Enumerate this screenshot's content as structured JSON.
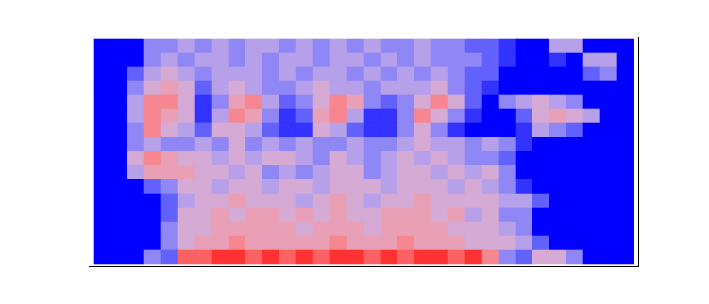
{
  "chart_data": {
    "type": "heatmap",
    "tick_labels": false,
    "zlim": [
      0,
      1
    ],
    "cells": [
      [
        0,
        0,
        0,
        0.3,
        0.3,
        0.4,
        0.3,
        0.4,
        0.3,
        0.4,
        0.4,
        0.3,
        0.4,
        0.3,
        0.4,
        0.3,
        0.4,
        0.3,
        0.3,
        0.4,
        0.3,
        0.3,
        0.2,
        0.2,
        0.1,
        0,
        0,
        0.4,
        0.4,
        0,
        0,
        0
      ],
      [
        0,
        0,
        0,
        0.3,
        0.4,
        0.3,
        0.4,
        0.4,
        0.3,
        0.4,
        0.3,
        0.4,
        0.4,
        0.3,
        0.4,
        0.4,
        0.3,
        0.4,
        0.3,
        0.4,
        0.3,
        0.3,
        0.3,
        0.2,
        0.1,
        0,
        0,
        0.1,
        0,
        0.4,
        0.4,
        0
      ],
      [
        0,
        0,
        0.2,
        0.4,
        0.5,
        0.4,
        0.3,
        0.4,
        0.4,
        0.4,
        0.3,
        0.4,
        0.3,
        0.4,
        0.4,
        0.3,
        0.4,
        0.3,
        0.4,
        0.3,
        0.4,
        0.3,
        0.2,
        0.2,
        0,
        0,
        0,
        0,
        0,
        0.2,
        0.3,
        0
      ],
      [
        0,
        0,
        0.3,
        0.5,
        0.6,
        0.5,
        0.2,
        0.4,
        0.5,
        0.4,
        0.3,
        0.3,
        0.4,
        0.5,
        0.4,
        0.4,
        0.3,
        0.4,
        0.4,
        0.4,
        0.5,
        0.3,
        0.2,
        0.1,
        0,
        0,
        0,
        0,
        0,
        0,
        0,
        0
      ],
      [
        0,
        0,
        0.4,
        0.7,
        0.7,
        0.5,
        0.1,
        0.3,
        0.6,
        0.7,
        0.4,
        0.2,
        0.3,
        0.5,
        0.7,
        0.6,
        0.3,
        0.2,
        0.3,
        0.5,
        0.7,
        0.5,
        0.2,
        0,
        0.3,
        0.4,
        0.5,
        0.4,
        0.3,
        0,
        0,
        0
      ],
      [
        0,
        0,
        0.4,
        0.7,
        0.6,
        0.5,
        0.1,
        0.4,
        0.7,
        0.6,
        0.3,
        0.1,
        0.2,
        0.6,
        0.7,
        0.4,
        0.1,
        0.1,
        0.3,
        0.7,
        0.5,
        0.3,
        0.1,
        0,
        0,
        0.2,
        0.5,
        0.6,
        0.5,
        0.4,
        0,
        0
      ],
      [
        0,
        0,
        0.3,
        0.7,
        0.5,
        0.4,
        0.2,
        0.5,
        0.5,
        0.4,
        0.2,
        0.1,
        0.1,
        0.5,
        0.4,
        0.2,
        0.1,
        0.1,
        0.3,
        0.5,
        0.3,
        0.1,
        0,
        0,
        0,
        0.1,
        0.4,
        0.3,
        0.2,
        0,
        0,
        0
      ],
      [
        0,
        0,
        0.3,
        0.4,
        0.3,
        0.3,
        0.4,
        0.3,
        0.5,
        0.3,
        0.4,
        0.3,
        0.4,
        0.3,
        0.3,
        0.4,
        0.3,
        0.3,
        0.4,
        0.5,
        0.4,
        0.4,
        0.3,
        0.4,
        0.3,
        0.1,
        0,
        0,
        0,
        0,
        0,
        0
      ],
      [
        0,
        0,
        0.5,
        0.7,
        0.6,
        0.5,
        0.5,
        0.4,
        0.5,
        0.4,
        0.5,
        0.5,
        0.4,
        0.3,
        0.5,
        0.4,
        0.3,
        0.4,
        0.5,
        0.4,
        0.5,
        0.4,
        0.3,
        0.3,
        0.2,
        0,
        0,
        0,
        0,
        0,
        0,
        0
      ],
      [
        0,
        0,
        0.4,
        0.6,
        0.6,
        0.6,
        0.5,
        0.5,
        0.4,
        0.5,
        0.3,
        0.4,
        0.3,
        0.4,
        0.5,
        0.5,
        0.3,
        0.4,
        0.5,
        0.5,
        0.4,
        0.5,
        0.4,
        0.5,
        0.3,
        0,
        0,
        0,
        0,
        0,
        0,
        0
      ],
      [
        0,
        0,
        0,
        0.2,
        0.3,
        0.5,
        0.5,
        0.4,
        0.5,
        0.5,
        0.4,
        0.5,
        0.5,
        0.4,
        0.5,
        0.5,
        0.5,
        0.4,
        0.5,
        0.5,
        0.5,
        0.4,
        0.5,
        0.4,
        0.3,
        0.1,
        0,
        0,
        0,
        0,
        0,
        0
      ],
      [
        0,
        0,
        0,
        0,
        0.2,
        0.4,
        0.5,
        0.5,
        0.6,
        0.5,
        0.5,
        0.5,
        0.4,
        0.5,
        0.6,
        0.5,
        0.4,
        0.5,
        0.5,
        0.6,
        0.5,
        0.5,
        0.5,
        0.5,
        0.4,
        0.4,
        0.2,
        0,
        0,
        0,
        0,
        0
      ],
      [
        0,
        0,
        0,
        0,
        0.2,
        0.5,
        0.5,
        0.6,
        0.5,
        0.6,
        0.6,
        0.5,
        0.6,
        0.5,
        0.6,
        0.5,
        0.5,
        0.6,
        0.6,
        0.6,
        0.5,
        0.6,
        0.4,
        0.5,
        0.3,
        0.3,
        0,
        0,
        0,
        0,
        0,
        0
      ],
      [
        0,
        0,
        0,
        0,
        0.3,
        0.5,
        0.5,
        0.6,
        0.6,
        0.6,
        0.6,
        0.6,
        0.5,
        0.6,
        0.6,
        0.6,
        0.5,
        0.6,
        0.6,
        0.6,
        0.6,
        0.5,
        0.5,
        0.5,
        0.4,
        0.3,
        0,
        0,
        0,
        0,
        0,
        0
      ],
      [
        0,
        0,
        0,
        0,
        0.3,
        0.5,
        0.6,
        0.6,
        0.7,
        0.6,
        0.6,
        0.6,
        0.6,
        0.6,
        0.7,
        0.6,
        0.6,
        0.6,
        0.7,
        0.6,
        0.6,
        0.6,
        0.5,
        0.5,
        0.5,
        0.4,
        0.2,
        0,
        0,
        0,
        0,
        0
      ],
      [
        0,
        0,
        0,
        0.3,
        0.2,
        0.8,
        0.8,
        0.9,
        0.9,
        0.8,
        0.9,
        0.8,
        0.9,
        0.8,
        0.9,
        0.9,
        0.8,
        0.9,
        0.8,
        0.9,
        0.9,
        0.8,
        0.9,
        0.7,
        0.3,
        0.2,
        0.5,
        0.5,
        0.3,
        0,
        0,
        0
      ]
    ]
  }
}
